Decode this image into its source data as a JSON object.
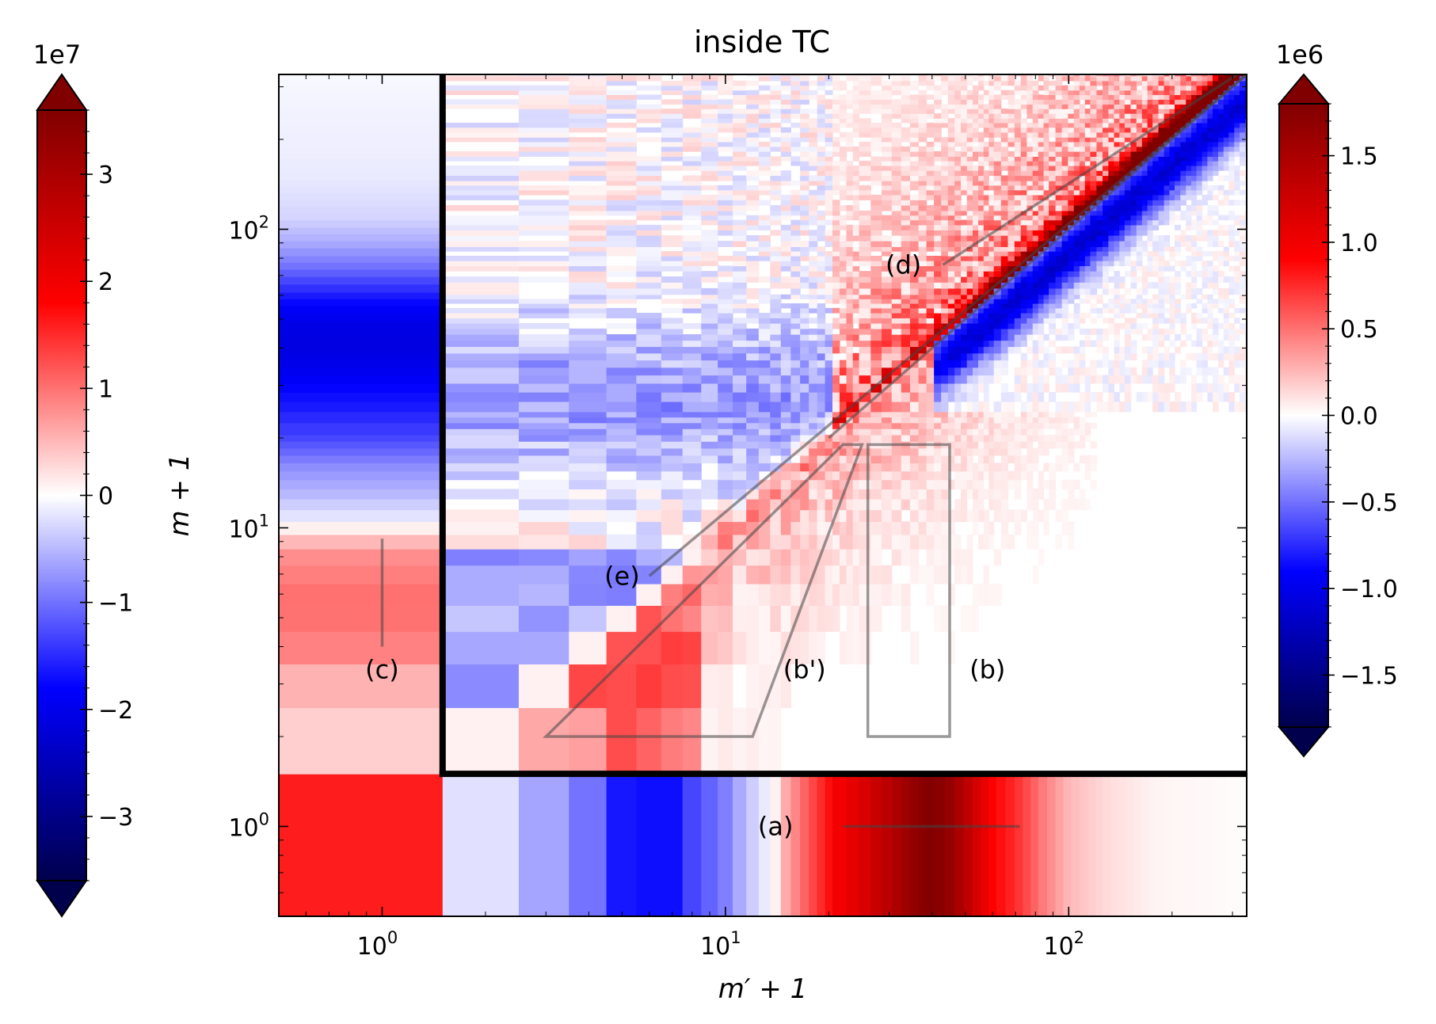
{
  "chart_data": {
    "type": "heatmap",
    "title": "inside TC",
    "xlabel": "m′ + 1",
    "ylabel": "m + 1",
    "x_scale": "log",
    "y_scale": "log",
    "xlim": [
      0.5,
      330
    ],
    "ylim": [
      0.5,
      330
    ],
    "x_ticks": [
      {
        "value": 1,
        "base": "10",
        "exp": "0"
      },
      {
        "value": 10,
        "base": "10",
        "exp": "1"
      },
      {
        "value": 100,
        "base": "10",
        "exp": "2"
      }
    ],
    "y_ticks": [
      {
        "value": 1,
        "base": "10",
        "exp": "0"
      },
      {
        "value": 10,
        "base": "10",
        "exp": "1"
      },
      {
        "value": 100,
        "base": "10",
        "exp": "2"
      }
    ],
    "grid": false,
    "divider_lines": {
      "x": 1.5,
      "y": 1.5
    },
    "colormap": "seismic",
    "colorbar_left": {
      "offset_label": "1e7",
      "range": [
        -3.6,
        3.6
      ],
      "extend": "both",
      "ticks": [
        -3,
        -2,
        -1,
        0,
        1,
        2,
        3
      ],
      "tick_labels": [
        "−3",
        "−2",
        "−1",
        "0",
        "1",
        "2",
        "3"
      ],
      "applies_to": "row m=0 and column m'=0 marginal strips"
    },
    "colorbar_right": {
      "offset_label": "1e6",
      "range": [
        -1.8,
        1.8
      ],
      "extend": "both",
      "ticks": [
        -1.5,
        -1.0,
        -0.5,
        0.0,
        0.5,
        1.0,
        1.5
      ],
      "tick_labels": [
        "−1.5",
        "−1.0",
        "−0.5",
        "0.0",
        "0.5",
        "1.0",
        "1.5"
      ],
      "applies_to": "main panel m,m' ≥ 1"
    },
    "bottom_strip": [
      {
        "x": 1,
        "value": 1.6
      },
      {
        "x": 2,
        "value": -0.3
      },
      {
        "x": 3,
        "value": -0.65
      },
      {
        "x": 4,
        "value": -1.0
      },
      {
        "x": 5,
        "value": -1.65
      },
      {
        "x": 6,
        "value": -1.7
      },
      {
        "x": 7,
        "value": -1.7
      },
      {
        "x": 8,
        "value": -1.3
      },
      {
        "x": 9,
        "value": -1.1
      },
      {
        "x": 10,
        "value": -0.9
      },
      {
        "x": 11,
        "value": -0.6
      },
      {
        "x": 12,
        "value": -0.35
      },
      {
        "x": 13,
        "value": -0.15
      },
      {
        "x": 14,
        "value": 0.1
      },
      {
        "x": 15,
        "value": 0.6
      },
      {
        "x": 17,
        "value": 1.1
      },
      {
        "x": 19,
        "value": 1.5
      },
      {
        "x": 21,
        "value": 1.9
      },
      {
        "x": 25,
        "value": 2.3
      },
      {
        "x": 30,
        "value": 2.8
      },
      {
        "x": 35,
        "value": 3.3
      },
      {
        "x": 40,
        "value": 3.6
      },
      {
        "x": 45,
        "value": 3.3
      },
      {
        "x": 52,
        "value": 2.6
      },
      {
        "x": 60,
        "value": 1.8
      },
      {
        "x": 70,
        "value": 1.5
      },
      {
        "x": 85,
        "value": 0.9
      },
      {
        "x": 100,
        "value": 0.5
      },
      {
        "x": 130,
        "value": 0.25
      },
      {
        "x": 180,
        "value": 0.08
      },
      {
        "x": 330,
        "value": 0.02
      }
    ],
    "left_strip": [
      {
        "y": 1,
        "value": 0.25
      },
      {
        "y": 2,
        "value": 0.35
      },
      {
        "y": 3,
        "value": 0.55
      },
      {
        "y": 4,
        "value": 0.9
      },
      {
        "y": 5,
        "value": 1.0
      },
      {
        "y": 6,
        "value": 1.0
      },
      {
        "y": 7,
        "value": 0.9
      },
      {
        "y": 8,
        "value": 0.8
      },
      {
        "y": 9,
        "value": 0.5
      },
      {
        "y": 10,
        "value": 0.1
      },
      {
        "y": 11,
        "value": -0.2
      },
      {
        "y": 13,
        "value": -0.5
      },
      {
        "y": 16,
        "value": -0.8
      },
      {
        "y": 20,
        "value": -1.3
      },
      {
        "y": 25,
        "value": -1.6
      },
      {
        "y": 30,
        "value": -1.8
      },
      {
        "y": 35,
        "value": -2.0
      },
      {
        "y": 40,
        "value": -2.1
      },
      {
        "y": 48,
        "value": -2.05
      },
      {
        "y": 56,
        "value": -1.8
      },
      {
        "y": 65,
        "value": -1.4
      },
      {
        "y": 75,
        "value": -1.0
      },
      {
        "y": 90,
        "value": -0.6
      },
      {
        "y": 110,
        "value": -0.3
      },
      {
        "y": 150,
        "value": -0.15
      },
      {
        "y": 330,
        "value": -0.05
      }
    ],
    "annotations": [
      {
        "label": "(a)",
        "text_at": [
          14,
          1
        ],
        "line": [
          [
            22,
            1
          ],
          [
            72,
            1
          ]
        ]
      },
      {
        "label": "(b)",
        "text_at": [
          58,
          3.35
        ],
        "polygon": [
          [
            26,
            2
          ],
          [
            45,
            2
          ],
          [
            45,
            19
          ],
          [
            26,
            19
          ]
        ]
      },
      {
        "label": "(b')",
        "text_at": [
          17,
          3.35
        ],
        "polygon": [
          [
            3,
            2
          ],
          [
            12,
            2
          ],
          [
            25,
            19
          ],
          [
            22,
            19
          ],
          [
            3,
            2
          ]
        ]
      },
      {
        "label": "(c)",
        "text_at": [
          1,
          3.35
        ],
        "line": [
          [
            1,
            4
          ],
          [
            1,
            9.2
          ]
        ]
      },
      {
        "label": "(d)",
        "text_at": [
          33,
          76
        ],
        "line": [
          [
            43,
            76
          ],
          [
            310,
            330
          ]
        ]
      },
      {
        "label": "(e)",
        "text_at": [
          5,
          6.9
        ],
        "line": [
          [
            6,
            6.9
          ],
          [
            330,
            330
          ]
        ]
      }
    ]
  }
}
